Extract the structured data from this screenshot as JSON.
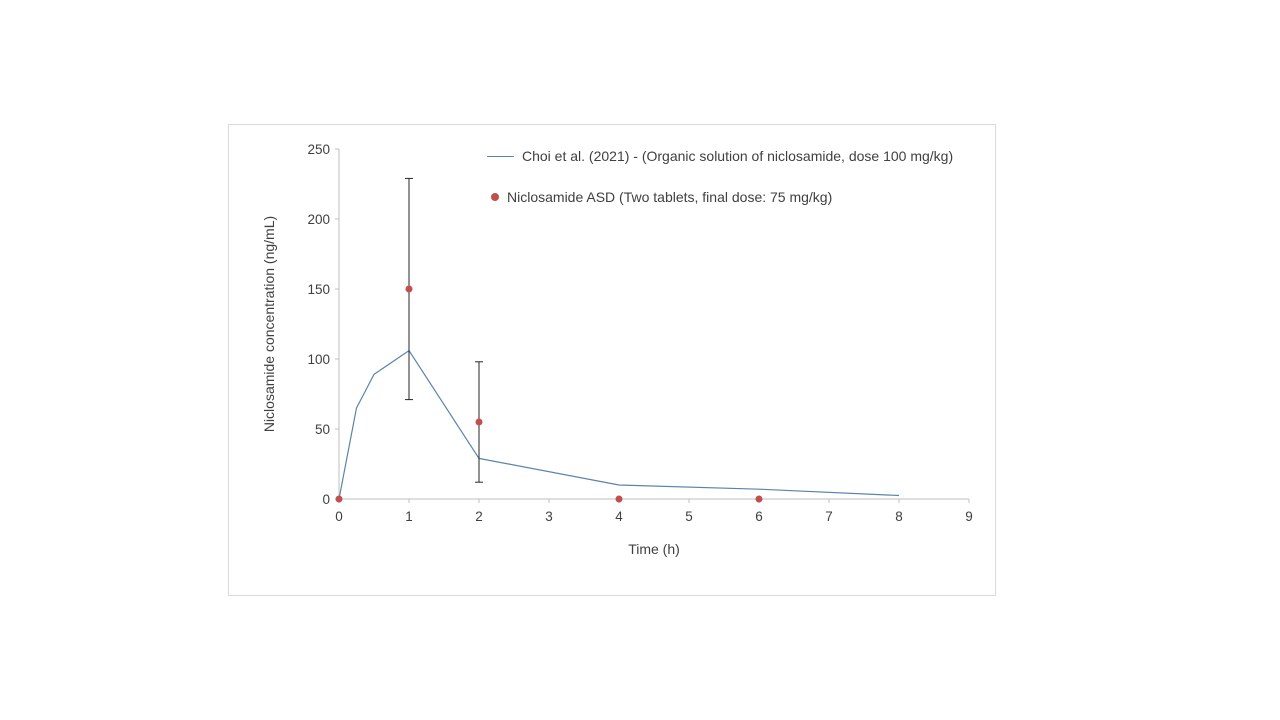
{
  "page": {
    "background": "#ffffff"
  },
  "chart_data": {
    "type": "line+scatter",
    "title": "",
    "xlabel": "Time (h)",
    "ylabel": "Niclosamide concentration (ng/mL)",
    "xlim": [
      0,
      9
    ],
    "xtick_step": 1,
    "ylim": [
      0,
      250
    ],
    "ytick_step": 50,
    "grid": false,
    "legend_position": "top-inside",
    "axis_color": "#bfbfbf",
    "text_color": "#3f3f3f",
    "error_bar_color": "#262626",
    "series": [
      {
        "name": "Choi et al. (2021) - (Organic solution of niclosamide, dose 100 mg/kg)",
        "type": "line",
        "color": "#5b84a8",
        "points": [
          [
            0,
            0
          ],
          [
            0.25,
            65
          ],
          [
            0.5,
            89
          ],
          [
            1,
            106
          ],
          [
            2,
            29
          ],
          [
            4,
            10
          ],
          [
            6,
            7
          ],
          [
            8,
            2.5
          ]
        ]
      },
      {
        "name": "Niclosamide ASD (Two tablets, final dose: 75 mg/kg)",
        "type": "scatter",
        "color": "#c0504d",
        "points": [
          [
            0,
            0
          ],
          [
            1,
            150
          ],
          [
            2,
            55
          ],
          [
            4,
            0
          ],
          [
            6,
            0
          ]
        ],
        "errors": [
          0,
          79,
          43,
          0,
          0
        ]
      }
    ]
  }
}
